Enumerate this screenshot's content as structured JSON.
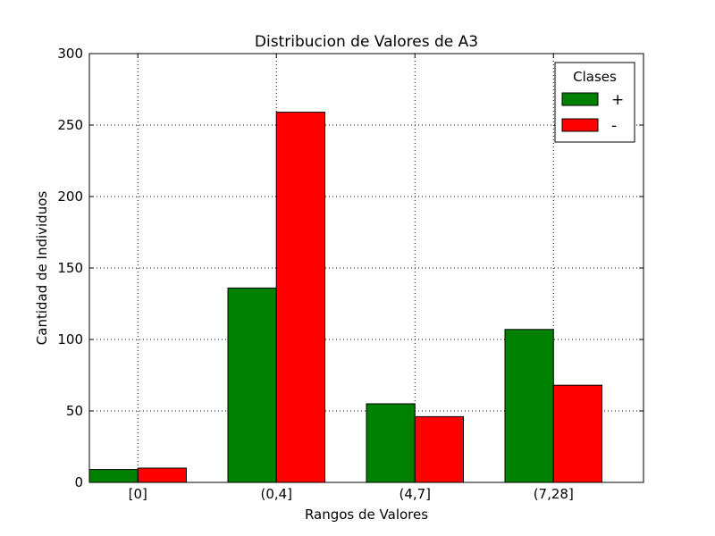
{
  "chart_data": {
    "type": "bar",
    "title": "Distribucion de Valores de A3",
    "xlabel": "Rangos de Valores",
    "ylabel": "Cantidad de Individuos",
    "categories": [
      "[0]",
      "(0,4]",
      "(4,7]",
      "(7,28]"
    ],
    "series": [
      {
        "name": "+",
        "color": "#008000",
        "values": [
          9,
          136,
          55,
          107
        ]
      },
      {
        "name": "-",
        "color": "#ff0000",
        "values": [
          10,
          259,
          46,
          68
        ]
      }
    ],
    "ylim": [
      0,
      300
    ],
    "yticks": [
      0,
      50,
      100,
      150,
      200,
      250,
      300
    ],
    "grid": true,
    "legend": {
      "title": "Clases",
      "position": "top-right"
    }
  }
}
